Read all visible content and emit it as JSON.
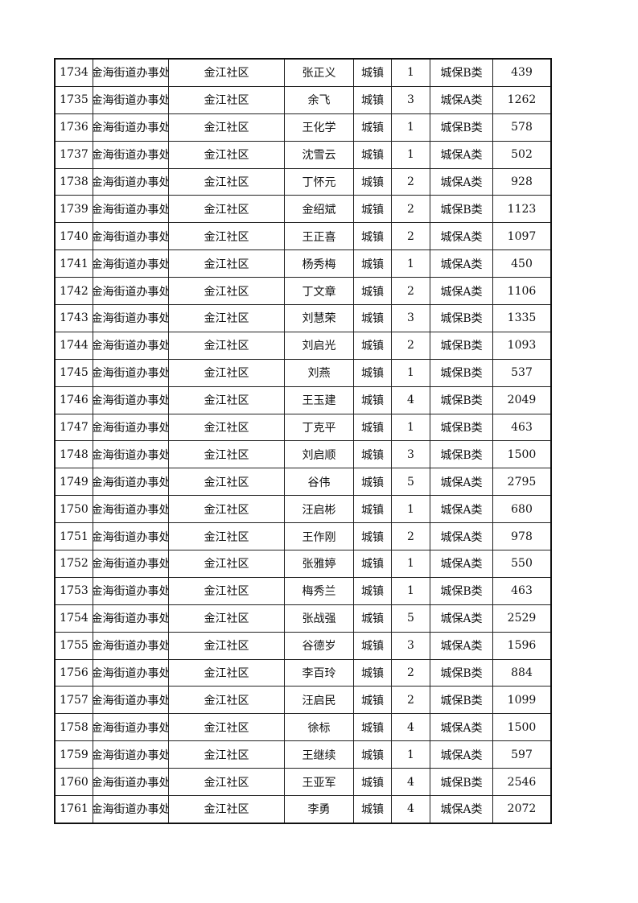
{
  "rows": [
    [
      "1734",
      "金海街道办事处",
      "金江社区",
      "张正义",
      "城镇",
      "1",
      "城保B类",
      "439"
    ],
    [
      "1735",
      "金海街道办事处",
      "金江社区",
      "余飞",
      "城镇",
      "3",
      "城保A类",
      "1262"
    ],
    [
      "1736",
      "金海街道办事处",
      "金江社区",
      "王化学",
      "城镇",
      "1",
      "城保B类",
      "578"
    ],
    [
      "1737",
      "金海街道办事处",
      "金江社区",
      "沈雪云",
      "城镇",
      "1",
      "城保A类",
      "502"
    ],
    [
      "1738",
      "金海街道办事处",
      "金江社区",
      "丁怀元",
      "城镇",
      "2",
      "城保A类",
      "928"
    ],
    [
      "1739",
      "金海街道办事处",
      "金江社区",
      "金绍斌",
      "城镇",
      "2",
      "城保B类",
      "1123"
    ],
    [
      "1740",
      "金海街道办事处",
      "金江社区",
      "王正喜",
      "城镇",
      "2",
      "城保A类",
      "1097"
    ],
    [
      "1741",
      "金海街道办事处",
      "金江社区",
      "杨秀梅",
      "城镇",
      "1",
      "城保A类",
      "450"
    ],
    [
      "1742",
      "金海街道办事处",
      "金江社区",
      "丁文章",
      "城镇",
      "2",
      "城保A类",
      "1106"
    ],
    [
      "1743",
      "金海街道办事处",
      "金江社区",
      "刘慧荣",
      "城镇",
      "3",
      "城保B类",
      "1335"
    ],
    [
      "1744",
      "金海街道办事处",
      "金江社区",
      "刘启光",
      "城镇",
      "2",
      "城保B类",
      "1093"
    ],
    [
      "1745",
      "金海街道办事处",
      "金江社区",
      "刘燕",
      "城镇",
      "1",
      "城保B类",
      "537"
    ],
    [
      "1746",
      "金海街道办事处",
      "金江社区",
      "王玉建",
      "城镇",
      "4",
      "城保B类",
      "2049"
    ],
    [
      "1747",
      "金海街道办事处",
      "金江社区",
      "丁克平",
      "城镇",
      "1",
      "城保B类",
      "463"
    ],
    [
      "1748",
      "金海街道办事处",
      "金江社区",
      "刘启顺",
      "城镇",
      "3",
      "城保B类",
      "1500"
    ],
    [
      "1749",
      "金海街道办事处",
      "金江社区",
      "谷伟",
      "城镇",
      "5",
      "城保A类",
      "2795"
    ],
    [
      "1750",
      "金海街道办事处",
      "金江社区",
      "汪启彬",
      "城镇",
      "1",
      "城保A类",
      "680"
    ],
    [
      "1751",
      "金海街道办事处",
      "金江社区",
      "王作刚",
      "城镇",
      "2",
      "城保A类",
      "978"
    ],
    [
      "1752",
      "金海街道办事处",
      "金江社区",
      "张雅婷",
      "城镇",
      "1",
      "城保A类",
      "550"
    ],
    [
      "1753",
      "金海街道办事处",
      "金江社区",
      "梅秀兰",
      "城镇",
      "1",
      "城保B类",
      "463"
    ],
    [
      "1754",
      "金海街道办事处",
      "金江社区",
      "张战强",
      "城镇",
      "5",
      "城保A类",
      "2529"
    ],
    [
      "1755",
      "金海街道办事处",
      "金江社区",
      "谷德岁",
      "城镇",
      "3",
      "城保A类",
      "1596"
    ],
    [
      "1756",
      "金海街道办事处",
      "金江社区",
      "李百玲",
      "城镇",
      "2",
      "城保B类",
      "884"
    ],
    [
      "1757",
      "金海街道办事处",
      "金江社区",
      "汪启民",
      "城镇",
      "2",
      "城保B类",
      "1099"
    ],
    [
      "1758",
      "金海街道办事处",
      "金江社区",
      "徐标",
      "城镇",
      "4",
      "城保A类",
      "1500"
    ],
    [
      "1759",
      "金海街道办事处",
      "金江社区",
      "王继续",
      "城镇",
      "1",
      "城保A类",
      "597"
    ],
    [
      "1760",
      "金海街道办事处",
      "金江社区",
      "王亚军",
      "城镇",
      "4",
      "城保B类",
      "2546"
    ],
    [
      "1761",
      "金海街道办事处",
      "金江社区",
      "李勇",
      "城镇",
      "4",
      "城保A类",
      "2072"
    ]
  ]
}
